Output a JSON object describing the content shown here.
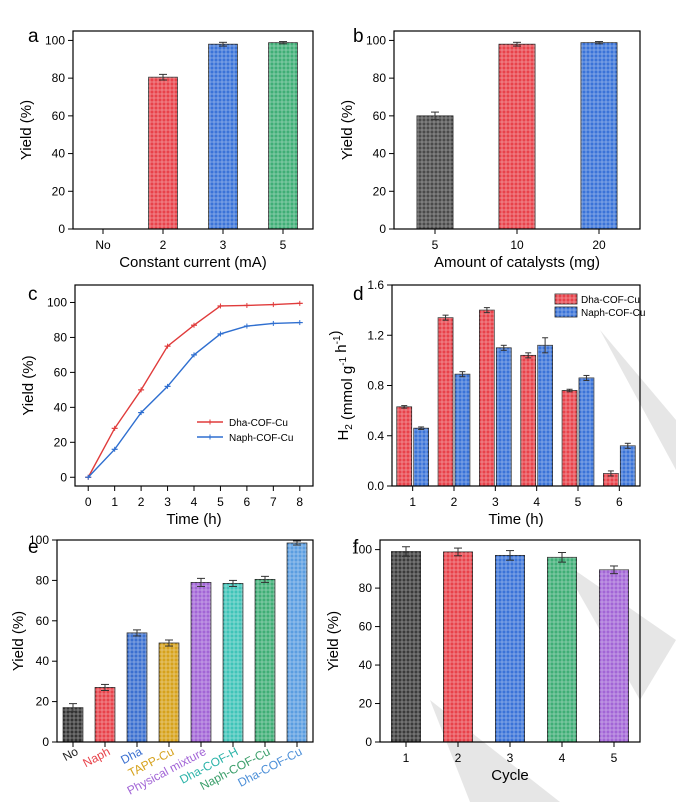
{
  "watermark_color": "#e6e6e6",
  "chart_data": [
    {
      "panel_label": "a",
      "type": "bar",
      "categories": [
        "No",
        "2",
        "3",
        "5"
      ],
      "values": [
        0,
        80.5,
        98,
        98.8
      ],
      "errors": [
        0,
        1.5,
        1.0,
        0.6
      ],
      "colors": [
        "#444444",
        "#e8424a",
        "#3a73d8",
        "#3fae76"
      ],
      "xlabel": "Constant current (mA)",
      "ylabel": "Yield (%)",
      "ylim": [
        0,
        105
      ],
      "yticks": [
        0,
        20,
        40,
        60,
        80,
        100
      ],
      "xlabel_colors": [
        "#000000",
        "#000000",
        "#000000",
        "#000000"
      ]
    },
    {
      "panel_label": "b",
      "type": "bar",
      "categories": [
        "5",
        "10",
        "20"
      ],
      "values": [
        60,
        98,
        98.8
      ],
      "errors": [
        2.0,
        1.0,
        0.6
      ],
      "colors": [
        "#4a4a4a",
        "#e8424a",
        "#3a73d8"
      ],
      "xlabel": "Amount of catalysts (mg)",
      "ylabel": "Yield (%)",
      "ylim": [
        0,
        105
      ],
      "yticks": [
        0,
        20,
        40,
        60,
        80,
        100
      ]
    },
    {
      "panel_label": "c",
      "type": "line",
      "x": [
        0,
        1,
        2,
        3,
        4,
        5,
        6,
        7,
        8
      ],
      "series": [
        {
          "name": "Dha-COF-Cu",
          "color": "#e03b3b",
          "values": [
            0,
            28,
            50,
            75,
            87,
            98,
            98.3,
            98.8,
            99.5
          ]
        },
        {
          "name": "Naph-COF-Cu",
          "color": "#2f6fd0",
          "values": [
            0,
            16,
            37,
            52,
            70,
            82,
            86.5,
            88,
            88.5
          ]
        }
      ],
      "xlabel": "Time (h)",
      "ylabel": "Yield (%)",
      "xlim": [
        -0.5,
        8.5
      ],
      "ylim": [
        -5,
        110
      ],
      "xticks": [
        0,
        1,
        2,
        3,
        4,
        5,
        6,
        7,
        8
      ],
      "yticks": [
        0,
        20,
        40,
        60,
        80,
        100
      ],
      "legend": "center-right"
    },
    {
      "panel_label": "d",
      "type": "bar",
      "categories": [
        "1",
        "2",
        "3",
        "4",
        "5",
        "6"
      ],
      "series": [
        {
          "name": "Dha-COF-Cu",
          "color": "#e8424a",
          "values": [
            0.63,
            1.34,
            1.4,
            1.04,
            0.76,
            0.1
          ],
          "errors": [
            0.01,
            0.02,
            0.02,
            0.02,
            0.01,
            0.02
          ]
        },
        {
          "name": "Naph-COF-Cu",
          "color": "#3a73d8",
          "values": [
            0.46,
            0.89,
            1.1,
            1.12,
            0.86,
            0.32
          ],
          "errors": [
            0.01,
            0.02,
            0.02,
            0.06,
            0.02,
            0.02
          ]
        }
      ],
      "xlabel": "Time (h)",
      "ylabel_main": "H",
      "ylabel_sub": "2",
      "ylabel_rest": " (mmol g",
      "ylabel_sup1": "-1",
      "ylabel_mid": " h",
      "ylabel_sup2": "-1",
      "ylabel_end": ")",
      "ylim": [
        0,
        1.6
      ],
      "yticks": [
        0.0,
        0.4,
        0.8,
        1.2,
        1.6
      ],
      "legend": "top-right"
    },
    {
      "panel_label": "e",
      "type": "bar",
      "categories": [
        "No",
        "Naph",
        "Dha",
        "TAPP-Cu",
        "Physical mixture",
        "Dha-COF-H",
        "Naph-COF-Cu",
        "Dha-COF-Cu"
      ],
      "values": [
        17,
        27,
        54,
        49,
        79,
        78.5,
        80.5,
        98.5
      ],
      "errors": [
        2.0,
        1.5,
        1.5,
        1.5,
        2.0,
        1.5,
        1.5,
        1.0
      ],
      "colors": [
        "#333333",
        "#e8424a",
        "#3a6fd0",
        "#d6a21c",
        "#a265d6",
        "#3fc4b8",
        "#3fae76",
        "#5a9de0"
      ],
      "xlabel_colors": [
        "#222222",
        "#e8424a",
        "#3a6fd0",
        "#d6a21c",
        "#a265d6",
        "#2ab3a8",
        "#3a9e6a",
        "#4c8fd8"
      ],
      "xlabel": "",
      "ylabel": "Yield (%)",
      "ylim": [
        0,
        100
      ],
      "yticks": [
        0,
        20,
        40,
        60,
        80,
        100
      ]
    },
    {
      "panel_label": "f",
      "type": "bar",
      "categories": [
        "1",
        "2",
        "3",
        "4",
        "5"
      ],
      "values": [
        99,
        98.8,
        97,
        96,
        89.5
      ],
      "errors": [
        2.5,
        2.0,
        2.5,
        2.5,
        2.0
      ],
      "colors": [
        "#3a3a3a",
        "#e8424a",
        "#3a73d8",
        "#3fae76",
        "#a265d6"
      ],
      "xlabel": "Cycle",
      "ylabel": "Yield (%)",
      "ylim": [
        0,
        105
      ],
      "yticks": [
        0,
        20,
        40,
        60,
        80,
        100
      ]
    }
  ]
}
